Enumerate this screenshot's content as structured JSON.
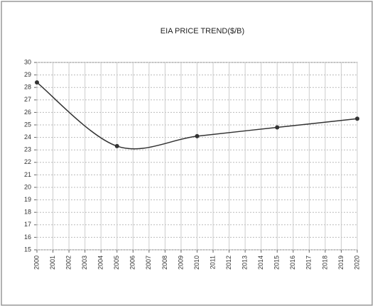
{
  "chart_data": {
    "type": "line",
    "title": "EIA  PRICE TREND($/B)",
    "x": [
      2000,
      2005,
      2010,
      2015,
      2020
    ],
    "values": [
      28.4,
      23.3,
      24.1,
      24.8,
      25.5
    ],
    "color": "#333333",
    "xlim": [
      2000,
      2020
    ],
    "xticks": [
      2000,
      2001,
      2002,
      2003,
      2004,
      2005,
      2006,
      2007,
      2008,
      2009,
      2010,
      2011,
      2012,
      2013,
      2014,
      2015,
      2016,
      2017,
      2018,
      2019,
      2020
    ],
    "ylim": [
      15,
      30
    ],
    "yticks": [
      15,
      16,
      17,
      18,
      19,
      20,
      21,
      22,
      23,
      24,
      25,
      26,
      27,
      28,
      29,
      30
    ],
    "grid": true,
    "smooth": true
  }
}
